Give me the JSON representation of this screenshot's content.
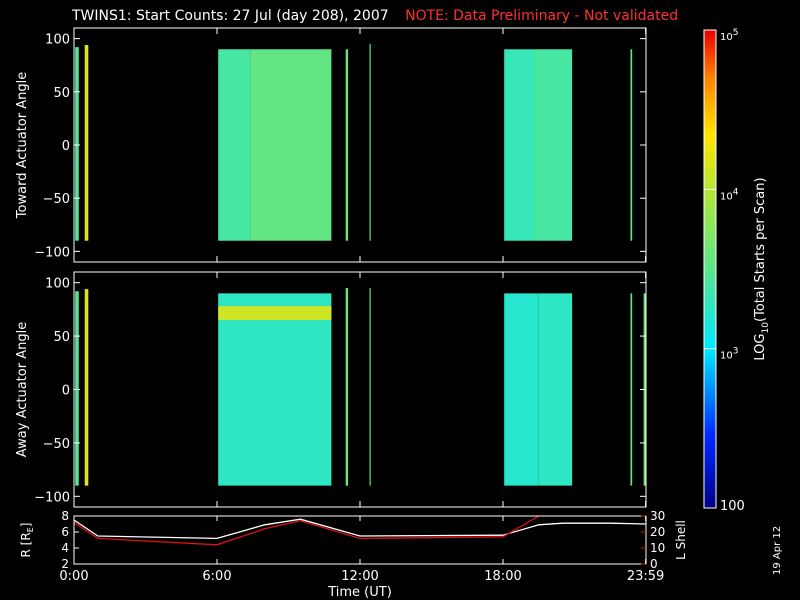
{
  "header": {
    "title": "TWINS1: Start Counts: 27 Jul (day 208), 2007",
    "note": "NOTE: Data Preliminary - Not validated"
  },
  "date_stamp": "19 Apr 12",
  "chart_data": [
    {
      "type": "heatmap",
      "name": "toward-panel",
      "ylabel": "Toward Actuator Angle",
      "ylim": [
        -110,
        110
      ],
      "yticks": [
        100,
        50,
        0,
        -50,
        -100
      ],
      "ytick_labels": [
        "100",
        "50",
        "0",
        "−50",
        "−100"
      ],
      "xlim": [
        0,
        24
      ],
      "xticks": [
        0,
        6,
        12,
        18,
        23.983
      ],
      "colorscale": "log",
      "cells": [
        {
          "x0": 0.05,
          "x1": 0.2,
          "y0": -90,
          "y1": 92,
          "value": 3000
        },
        {
          "x0": 0.45,
          "x1": 0.6,
          "y0": -90,
          "y1": 94,
          "value": 15000
        },
        {
          "x0": 6.05,
          "x1": 7.4,
          "y0": -90,
          "y1": 90,
          "value": 2500
        },
        {
          "x0": 7.4,
          "x1": 10.8,
          "y0": -90,
          "y1": 90,
          "value": 3500
        },
        {
          "x0": 11.4,
          "x1": 11.5,
          "y0": -90,
          "y1": 90,
          "value": 4000
        },
        {
          "x0": 12.4,
          "x1": 12.45,
          "y0": -90,
          "y1": 95,
          "value": 3000
        },
        {
          "x0": 18.05,
          "x1": 19.3,
          "y0": -90,
          "y1": 90,
          "value": 2000
        },
        {
          "x0": 19.3,
          "x1": 20.9,
          "y0": -90,
          "y1": 90,
          "value": 2500
        },
        {
          "x0": 23.35,
          "x1": 23.42,
          "y0": -90,
          "y1": 90,
          "value": 3500
        }
      ]
    },
    {
      "type": "heatmap",
      "name": "away-panel",
      "ylabel": "Away Actuator Angle",
      "ylim": [
        -110,
        110
      ],
      "yticks": [
        100,
        50,
        0,
        -50,
        -100
      ],
      "ytick_labels": [
        "100",
        "50",
        "0",
        "−50",
        "−100"
      ],
      "xlim": [
        0,
        24
      ],
      "xticks": [
        0,
        6,
        12,
        18,
        23.983
      ],
      "colorscale": "log",
      "cells": [
        {
          "x0": 0.05,
          "x1": 0.2,
          "y0": -90,
          "y1": 92,
          "value": 3000
        },
        {
          "x0": 0.45,
          "x1": 0.6,
          "y0": -90,
          "y1": 94,
          "value": 15000
        },
        {
          "x0": 6.05,
          "x1": 10.8,
          "y0": -90,
          "y1": 90,
          "value": 1800
        },
        {
          "x0": 6.05,
          "x1": 10.8,
          "y0": 65,
          "y1": 78,
          "value": 13000
        },
        {
          "x0": 11.4,
          "x1": 11.5,
          "y0": -90,
          "y1": 95,
          "value": 4000
        },
        {
          "x0": 12.4,
          "x1": 12.45,
          "y0": -90,
          "y1": 95,
          "value": 3000
        },
        {
          "x0": 18.05,
          "x1": 19.5,
          "y0": -90,
          "y1": 90,
          "value": 1600
        },
        {
          "x0": 19.5,
          "x1": 20.9,
          "y0": -90,
          "y1": 90,
          "value": 1800
        },
        {
          "x0": 23.35,
          "x1": 23.42,
          "y0": -90,
          "y1": 90,
          "value": 3500
        },
        {
          "x0": 23.9,
          "x1": 23.98,
          "y0": -90,
          "y1": 90,
          "value": 4000
        }
      ]
    },
    {
      "type": "line",
      "name": "ephemeris-panel",
      "ylabel": "R [R_E]",
      "ylabel_sub": "E",
      "ylabel_prefix": "R [R",
      "ylabel_suffix": "]",
      "ylim": [
        2,
        8
      ],
      "yticks": [
        8,
        6,
        4,
        2
      ],
      "ytick_labels": [
        "8",
        "6",
        "4",
        "2"
      ],
      "y2label": "L Shell",
      "y2lim": [
        0,
        30
      ],
      "y2ticks": [
        30,
        20,
        10,
        0
      ],
      "y2tick_labels": [
        "30",
        "20",
        "10",
        "0"
      ],
      "xlim": [
        0,
        24
      ],
      "xticks": [
        0,
        6,
        12,
        18,
        23.983
      ],
      "xtick_labels": [
        "0:00",
        "6:00",
        "12:00",
        "18:00",
        "23:59"
      ],
      "xlabel": "Time (UT)",
      "series": [
        {
          "color": "#ffffff",
          "x": [
            0,
            1,
            6,
            8,
            9.5,
            12,
            18,
            19.5,
            20.5,
            22.5,
            24
          ],
          "y": [
            7.5,
            5.5,
            5.2,
            6.9,
            7.6,
            5.5,
            5.6,
            6.9,
            7.1,
            7.1,
            7.0
          ]
        },
        {
          "color": "#e01010",
          "axis": "y2",
          "x": [
            0,
            1,
            6,
            8,
            9.5,
            12,
            18,
            19.5
          ],
          "y": [
            26,
            16,
            12,
            22,
            27,
            16,
            17,
            30
          ]
        }
      ]
    }
  ],
  "colorbar": {
    "label": "LOG",
    "label_sub": "10",
    "label_rest": "(Total Starts per Scan)",
    "min": 100,
    "max": 100000,
    "tick_values": [
      100000,
      10000,
      1000
    ],
    "tick_labels": [
      {
        "base": "10",
        "exp": "5"
      },
      {
        "base": "10",
        "exp": "4"
      },
      {
        "base": "10",
        "exp": "3"
      }
    ],
    "bottom_label": "100"
  },
  "colors": {
    "background": "#000000",
    "axes": "#ffffff",
    "note": "#ff3030"
  }
}
